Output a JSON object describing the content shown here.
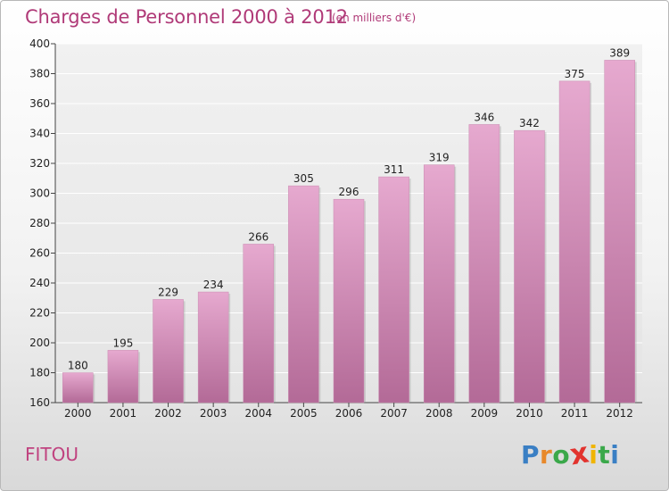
{
  "title": "Charges de Personnel 2000 à 2012",
  "subtitle": "(en milliers d'€)",
  "commune": "FITOU",
  "logo": {
    "letters": [
      "P",
      "r",
      "o",
      "x",
      "i",
      "t",
      "i"
    ],
    "colors": [
      "#3a7fc4",
      "#e8892b",
      "#3aa84a",
      "#e2332e",
      "#f0b400",
      "#3aa84a",
      "#3a7fc4"
    ]
  },
  "colors": {
    "bar_top": "#e6a9cf",
    "bar_bottom": "#b36a97",
    "title": "#b03a78"
  },
  "chart_data": {
    "type": "bar",
    "title": "Charges de Personnel 2000 à 2012",
    "subtitle": "(en milliers d'€)",
    "categories": [
      "2000",
      "2001",
      "2002",
      "2003",
      "2004",
      "2005",
      "2006",
      "2007",
      "2008",
      "2009",
      "2010",
      "2011",
      "2012"
    ],
    "values": [
      180,
      195,
      229,
      234,
      266,
      305,
      296,
      311,
      319,
      346,
      342,
      375,
      389
    ],
    "ylim": [
      160,
      400
    ],
    "yticks": [
      160,
      180,
      200,
      220,
      240,
      260,
      280,
      300,
      320,
      340,
      360,
      380,
      400
    ],
    "grid": true,
    "legend": "none"
  }
}
